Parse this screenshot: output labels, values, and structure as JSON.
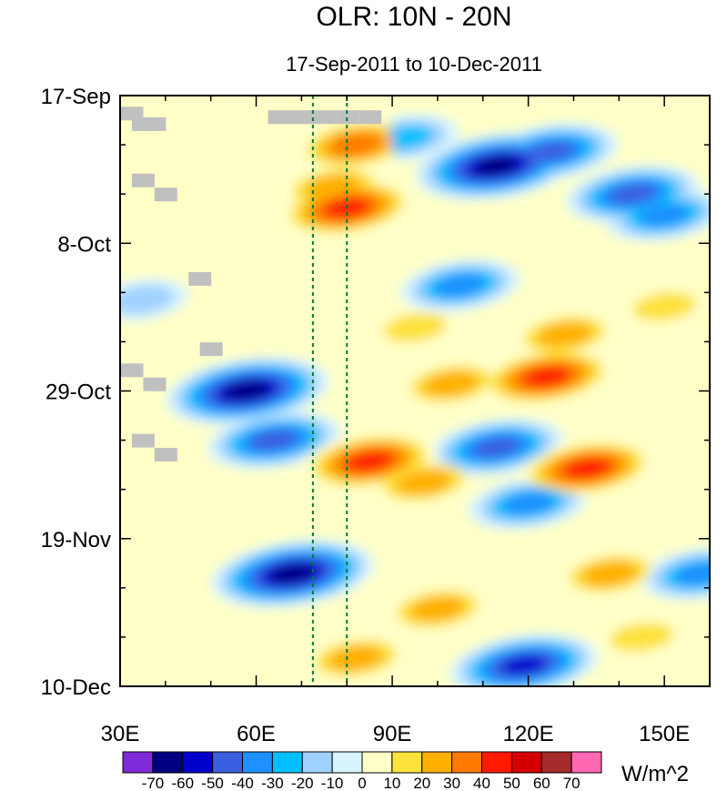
{
  "chart_data": {
    "type": "heatmap",
    "title": "OLR: 10N - 20N",
    "subtitle": "17-Sep-2011 to 10-Dec-2011",
    "x_range": [
      30,
      160
    ],
    "y_range_days": [
      0,
      84
    ],
    "x_ticks": [
      {
        "value": 30,
        "label": "30E"
      },
      {
        "value": 60,
        "label": "60E"
      },
      {
        "value": 90,
        "label": "90E"
      },
      {
        "value": 120,
        "label": "120E"
      },
      {
        "value": 150,
        "label": "150E"
      }
    ],
    "y_ticks": [
      {
        "day": 0,
        "label": "17-Sep"
      },
      {
        "day": 21,
        "label": "8-Oct"
      },
      {
        "day": 42,
        "label": "29-Oct"
      },
      {
        "day": 63,
        "label": "19-Nov"
      },
      {
        "day": 84,
        "label": "10-Dec"
      }
    ],
    "reference_lines_lon": [
      72.5,
      80
    ],
    "colorbar": {
      "units": "W/m^2",
      "labels": [
        "-70",
        "-60",
        "-50",
        "-40",
        "-30",
        "-20",
        "-10",
        "0",
        "10",
        "20",
        "30",
        "40",
        "50",
        "60",
        "70"
      ],
      "colors": [
        "#7f2ad8",
        "#000080",
        "#0000cd",
        "#3a5fe0",
        "#1e90ff",
        "#00bfff",
        "#a0d2ff",
        "#d8f4ff",
        "#ffffc8",
        "#fde23c",
        "#ffb000",
        "#ff7a00",
        "#ff1a00",
        "#d40000",
        "#a52a2a",
        "#ff69b4"
      ]
    },
    "anomaly_features": [
      {
        "lon": 58,
        "day": 42,
        "value": -70
      },
      {
        "lon": 68,
        "day": 68,
        "value": -70
      },
      {
        "lon": 64,
        "day": 49,
        "value": -50
      },
      {
        "lon": 113,
        "day": 10,
        "value": -70
      },
      {
        "lon": 125,
        "day": 8,
        "value": -50
      },
      {
        "lon": 143,
        "day": 14,
        "value": -50
      },
      {
        "lon": 113,
        "day": 50,
        "value": -50
      },
      {
        "lon": 120,
        "day": 58,
        "value": -40
      },
      {
        "lon": 119,
        "day": 81,
        "value": -60
      },
      {
        "lon": 150,
        "day": 17,
        "value": -40
      },
      {
        "lon": 105,
        "day": 27,
        "value": -40
      },
      {
        "lon": 158,
        "day": 68,
        "value": -40
      },
      {
        "lon": 93,
        "day": 6,
        "value": -30
      },
      {
        "lon": 35,
        "day": 29,
        "value": -20
      },
      {
        "lon": 80,
        "day": 16,
        "value": 50
      },
      {
        "lon": 82,
        "day": 7,
        "value": 40
      },
      {
        "lon": 77,
        "day": 13,
        "value": 30
      },
      {
        "lon": 124,
        "day": 40,
        "value": 50
      },
      {
        "lon": 103,
        "day": 41,
        "value": 30
      },
      {
        "lon": 85,
        "day": 52,
        "value": 50
      },
      {
        "lon": 97,
        "day": 55,
        "value": 30
      },
      {
        "lon": 133,
        "day": 53,
        "value": 50
      },
      {
        "lon": 128,
        "day": 34,
        "value": 30
      },
      {
        "lon": 82,
        "day": 80,
        "value": 30
      },
      {
        "lon": 100,
        "day": 73,
        "value": 30
      },
      {
        "lon": 138,
        "day": 68,
        "value": 30
      },
      {
        "lon": 150,
        "day": 30,
        "value": 20
      },
      {
        "lon": 95,
        "day": 33,
        "value": 20
      },
      {
        "lon": 145,
        "day": 77,
        "value": 20
      },
      {
        "lon": 33,
        "day": 24,
        "value": 10
      }
    ],
    "missing_data_cells": [
      {
        "lon": 32.5,
        "day": 2.5
      },
      {
        "lon": 35,
        "day": 4
      },
      {
        "lon": 37.5,
        "day": 4
      },
      {
        "lon": 35,
        "day": 12
      },
      {
        "lon": 40,
        "day": 14
      },
      {
        "lon": 47.5,
        "day": 26
      },
      {
        "lon": 50,
        "day": 36
      },
      {
        "lon": 32.5,
        "day": 39
      },
      {
        "lon": 37.5,
        "day": 41
      },
      {
        "lon": 35,
        "day": 49
      },
      {
        "lon": 40,
        "day": 51
      },
      {
        "lon": 65,
        "day": 3
      },
      {
        "lon": 70,
        "day": 3
      },
      {
        "lon": 75,
        "day": 3
      },
      {
        "lon": 80,
        "day": 3
      },
      {
        "lon": 85,
        "day": 3
      }
    ]
  }
}
